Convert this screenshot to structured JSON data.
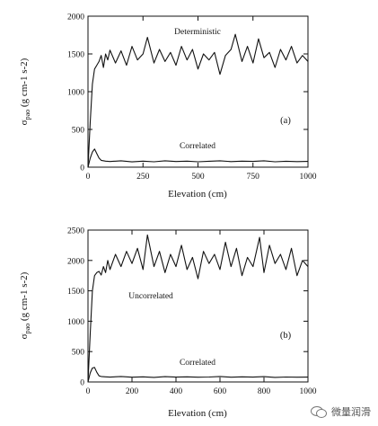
{
  "chart_data": [
    {
      "type": "line",
      "panel_label": "(a)",
      "xlabel": "Elevation (cm)",
      "ylabel_main": "σ",
      "ylabel_sub": "pao",
      "ylabel_units": "(g cm-1 s-2)",
      "xlim": [
        0,
        1000
      ],
      "ylim": [
        0,
        2000
      ],
      "xticks": [
        "0",
        "250",
        "500",
        "750",
        "1000"
      ],
      "yticks": [
        "0",
        "500",
        "1000",
        "1500",
        "2000"
      ],
      "series": [
        {
          "name": "Deterministic",
          "x": [
            0,
            10,
            20,
            30,
            40,
            50,
            60,
            70,
            80,
            90,
            100,
            125,
            150,
            175,
            200,
            225,
            250,
            270,
            300,
            325,
            350,
            375,
            400,
            425,
            450,
            475,
            500,
            525,
            550,
            575,
            600,
            625,
            650,
            670,
            700,
            725,
            750,
            775,
            800,
            825,
            850,
            875,
            900,
            925,
            950,
            975,
            1000
          ],
          "values": [
            0,
            600,
            1100,
            1300,
            1350,
            1400,
            1480,
            1320,
            1500,
            1420,
            1550,
            1380,
            1540,
            1350,
            1600,
            1420,
            1500,
            1720,
            1380,
            1560,
            1400,
            1520,
            1350,
            1600,
            1420,
            1560,
            1300,
            1500,
            1420,
            1520,
            1230,
            1480,
            1560,
            1760,
            1400,
            1600,
            1380,
            1700,
            1450,
            1520,
            1320,
            1560,
            1420,
            1600,
            1380,
            1480,
            1400
          ]
        },
        {
          "name": "Correlated",
          "x": [
            0,
            10,
            20,
            30,
            40,
            50,
            60,
            80,
            100,
            150,
            200,
            250,
            300,
            350,
            400,
            450,
            500,
            550,
            600,
            650,
            700,
            750,
            800,
            850,
            900,
            950,
            1000
          ],
          "values": [
            0,
            120,
            200,
            240,
            180,
            120,
            90,
            80,
            75,
            85,
            70,
            80,
            72,
            85,
            75,
            80,
            72,
            78,
            85,
            74,
            80,
            76,
            84,
            72,
            78,
            74,
            76
          ]
        }
      ],
      "annotations": [
        "Deterministic",
        "Correlated"
      ]
    },
    {
      "type": "line",
      "panel_label": "(b)",
      "xlabel": "Elevation (cm)",
      "ylabel_main": "σ",
      "ylabel_sub": "pao",
      "ylabel_units": "(g cm-1 s-2)",
      "xlim": [
        0,
        1000
      ],
      "ylim": [
        0,
        2500
      ],
      "xticks": [
        "0",
        "200",
        "400",
        "600",
        "800",
        "1000"
      ],
      "yticks": [
        "0",
        "500",
        "1000",
        "1500",
        "2000",
        "2500"
      ],
      "series": [
        {
          "name": "Uncorrelated",
          "x": [
            0,
            10,
            20,
            30,
            40,
            50,
            60,
            70,
            80,
            90,
            100,
            125,
            150,
            175,
            200,
            225,
            250,
            270,
            300,
            325,
            350,
            375,
            400,
            425,
            450,
            475,
            500,
            525,
            550,
            575,
            600,
            625,
            650,
            675,
            700,
            725,
            750,
            780,
            800,
            825,
            850,
            875,
            900,
            925,
            950,
            975,
            1000
          ],
          "values": [
            0,
            800,
            1500,
            1750,
            1800,
            1820,
            1760,
            1900,
            1800,
            2000,
            1850,
            2100,
            1900,
            2150,
            1950,
            2200,
            1850,
            2420,
            1900,
            2150,
            1800,
            2100,
            1900,
            2250,
            1850,
            2050,
            1700,
            2150,
            1950,
            2100,
            1850,
            2300,
            1900,
            2200,
            1750,
            2050,
            1900,
            2380,
            1800,
            2250,
            1950,
            2100,
            1850,
            2200,
            1750,
            2000,
            1900
          ]
        },
        {
          "name": "Correlated",
          "x": [
            0,
            10,
            20,
            30,
            40,
            50,
            60,
            80,
            100,
            150,
            200,
            250,
            300,
            350,
            400,
            450,
            500,
            550,
            600,
            650,
            700,
            750,
            800,
            850,
            900,
            950,
            1000
          ],
          "values": [
            0,
            150,
            230,
            240,
            160,
            100,
            90,
            85,
            80,
            90,
            78,
            85,
            76,
            88,
            80,
            84,
            78,
            82,
            90,
            78,
            84,
            80,
            88,
            76,
            82,
            78,
            80
          ]
        }
      ],
      "annotations": [
        "Uncorrelated",
        "Correlated"
      ]
    }
  ],
  "watermark": {
    "text": "微量润滑",
    "icon": "chat-bubbles-icon"
  }
}
